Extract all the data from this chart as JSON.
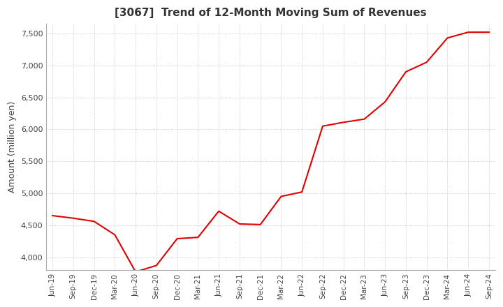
{
  "title": "[3067]  Trend of 12-Month Moving Sum of Revenues",
  "ylabel": "Amount (million yen)",
  "line_color": "#e00000",
  "background_color": "#ffffff",
  "plot_bg_color": "#ffffff",
  "ylim": [
    3800,
    7650
  ],
  "yticks": [
    4000,
    4500,
    5000,
    5500,
    6000,
    6500,
    7000,
    7500
  ],
  "x_labels": [
    "Jun-19",
    "Sep-19",
    "Dec-19",
    "Mar-20",
    "Jun-20",
    "Sep-20",
    "Dec-20",
    "Mar-21",
    "Jun-21",
    "Sep-21",
    "Dec-21",
    "Mar-22",
    "Jun-22",
    "Sep-22",
    "Dec-22",
    "Mar-23",
    "Jun-23",
    "Sep-23",
    "Dec-23",
    "Mar-24",
    "Jun-24",
    "Sep-24"
  ],
  "values": [
    4650,
    4610,
    4560,
    4350,
    3770,
    3870,
    4290,
    4310,
    4720,
    4520,
    4510,
    4950,
    5020,
    6050,
    6110,
    6160,
    6430,
    6900,
    7050,
    7430,
    7520,
    7520
  ]
}
